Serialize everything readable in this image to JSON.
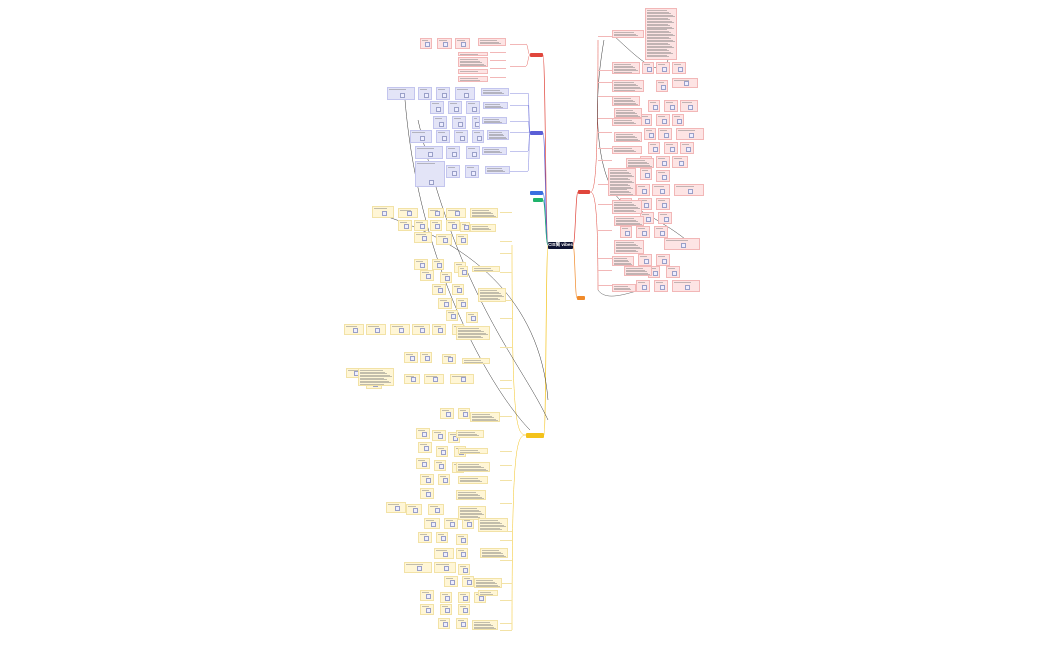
{
  "root": {
    "label": "CIS简 vibes"
  },
  "branches": [
    {
      "id": "red-top",
      "label": "",
      "color": "#e0463c",
      "fill": "#fde4e4",
      "stroke": "#f2b7b7"
    },
    {
      "id": "purple",
      "label": "",
      "color": "#5a5fd6",
      "fill": "#e3e4f7",
      "stroke": "#c3c5ee"
    },
    {
      "id": "blue",
      "label": "",
      "color": "#3a6fe0",
      "fill": "#e3ecfb",
      "stroke": "#c3d4f4"
    },
    {
      "id": "green",
      "label": "",
      "color": "#1fb36b",
      "fill": "#e2f6ea",
      "stroke": "#bfe8cf"
    },
    {
      "id": "red-right",
      "label": "",
      "color": "#e0463c",
      "fill": "#fde4e4",
      "stroke": "#f2b7b7"
    },
    {
      "id": "orange",
      "label": "",
      "color": "#f08a2a",
      "fill": "#fdebd9",
      "stroke": "#f4cfa9"
    },
    {
      "id": "yellow",
      "label": "",
      "color": "#f3c21b",
      "fill": "#fff6d6",
      "stroke": "#f2e2a6"
    }
  ],
  "colors": {
    "root": "#0f1433",
    "cross_link": "#3a3a3a",
    "thumb": "#9aa0c8"
  }
}
